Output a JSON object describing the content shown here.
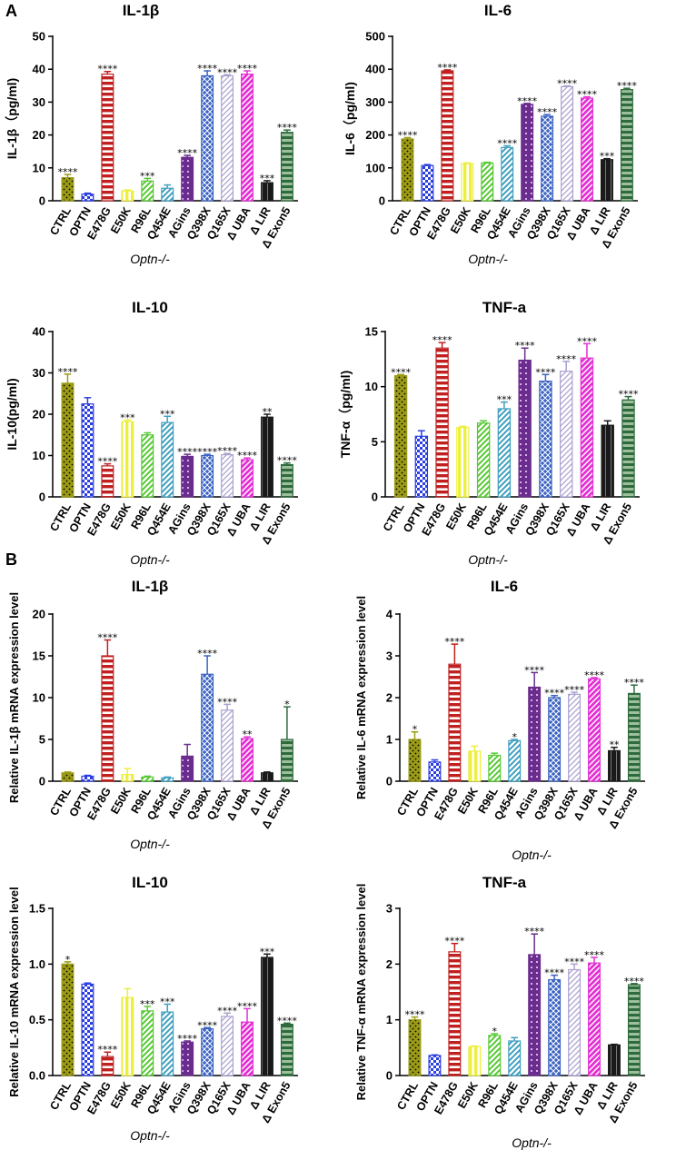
{
  "panel_labels": [
    "A",
    "B"
  ],
  "chart_data": [
    {
      "type": "bar",
      "title": "IL-1β",
      "ylabel": "IL-1β（pg/ml)",
      "xlabel": "Optn-/-",
      "ylim": [
        0,
        50
      ],
      "yticks": [
        "0",
        "10",
        "20",
        "30",
        "40",
        "50"
      ],
      "categories": [
        "CTRL",
        "OPTN",
        "E478G",
        "E50K",
        "R96L",
        "Q454E",
        "AGins",
        "Q398X",
        "Q165X",
        "Δ UBA",
        "Δ LIR",
        "Δ Exon5"
      ],
      "values": [
        7.0,
        2.0,
        38.5,
        3.0,
        6.0,
        3.8,
        13.2,
        38.0,
        38.0,
        38.5,
        5.5,
        20.8
      ],
      "errors": [
        1.0,
        0.3,
        0.8,
        0.3,
        0.8,
        1.0,
        0.6,
        1.5,
        0.3,
        1.0,
        0.6,
        0.7
      ],
      "significance": [
        "****",
        "",
        "****",
        "",
        "***",
        "",
        "****",
        "****",
        "****",
        "****",
        "***",
        "****"
      ]
    },
    {
      "type": "bar",
      "title": "IL-6",
      "ylabel": "IL-6（pg/ml)",
      "xlabel": "Optn-/-",
      "ylim": [
        0,
        500
      ],
      "yticks": [
        "0",
        "100",
        "200",
        "300",
        "400",
        "500"
      ],
      "categories": [
        "CTRL",
        "OPTN",
        "E478G",
        "E50K",
        "R96L",
        "Q454E",
        "AGins",
        "Q398X",
        "Q165X",
        "Δ UBA",
        "Δ LIR",
        "Δ Exon5"
      ],
      "values": [
        188,
        107,
        395,
        113,
        115,
        162,
        293,
        257,
        347,
        312,
        125,
        338
      ],
      "errors": [
        4,
        3,
        3,
        2,
        2,
        5,
        3,
        5,
        2,
        4,
        3,
        4
      ],
      "significance": [
        "****",
        "",
        "****",
        "",
        "",
        "****",
        "****",
        "****",
        "****",
        "****",
        "***",
        "****"
      ]
    },
    {
      "type": "bar",
      "title": "IL-10",
      "ylabel": "IL-10(pg/ml)",
      "xlabel": "Optn-/-",
      "ylim": [
        0,
        40
      ],
      "yticks": [
        "0",
        "10",
        "20",
        "30",
        "40"
      ],
      "categories": [
        "CTRL",
        "OPTN",
        "E478G",
        "E50K",
        "R96L",
        "Q454E",
        "AGins",
        "Q398X",
        "Q165X",
        "Δ UBA",
        "Δ LIR",
        "Δ Exon5"
      ],
      "values": [
        27.5,
        22.5,
        7.5,
        18.2,
        15.0,
        18.0,
        9.8,
        10.0,
        10.2,
        9.0,
        19.3,
        7.8
      ],
      "errors": [
        2.2,
        1.5,
        0.5,
        0.4,
        0.5,
        1.5,
        0.5,
        0.3,
        0.3,
        0.4,
        0.7,
        0.4
      ],
      "significance": [
        "****",
        "",
        "****",
        "***",
        "",
        "***",
        "****",
        "****",
        "****",
        "****",
        "**",
        "****"
      ]
    },
    {
      "type": "bar",
      "title": "TNF-a",
      "ylabel": "TNF-α（pg/ml)",
      "xlabel": "Optn-/-",
      "ylim": [
        0,
        15
      ],
      "yticks": [
        "0",
        "5",
        "10",
        "15"
      ],
      "categories": [
        "CTRL",
        "OPTN",
        "E478G",
        "E50K",
        "R96L",
        "Q454E",
        "AGins",
        "Q398X",
        "Q165X",
        "Δ UBA",
        "Δ LIR",
        "Δ Exon5"
      ],
      "values": [
        11.0,
        5.5,
        13.5,
        6.3,
        6.7,
        8.0,
        12.4,
        10.5,
        11.4,
        12.6,
        6.5,
        8.8
      ],
      "errors": [
        0.1,
        0.5,
        0.5,
        0.1,
        0.2,
        0.6,
        1.1,
        0.6,
        0.9,
        1.3,
        0.4,
        0.3
      ],
      "significance": [
        "****",
        "",
        "****",
        "",
        "",
        "***",
        "****",
        "****",
        "****",
        "****",
        "",
        "****"
      ]
    },
    {
      "type": "bar",
      "title": "IL-1β",
      "ylabel": "Relative IL-1β mRNA expression level",
      "xlabel": "Optn-/-",
      "ylim": [
        0,
        20
      ],
      "yticks": [
        "0",
        "5",
        "10",
        "15",
        "20"
      ],
      "categories": [
        "CTRL",
        "OPTN",
        "E478G",
        "E50K",
        "R96L",
        "Q454E",
        "AGins",
        "Q398X",
        "Q165X",
        "Δ UBA",
        "Δ LIR",
        "Δ Exon5"
      ],
      "values": [
        1.0,
        0.6,
        15.0,
        0.8,
        0.5,
        0.4,
        3.0,
        12.8,
        8.5,
        5.1,
        1.0,
        5.0
      ],
      "errors": [
        0.1,
        0.1,
        1.9,
        0.7,
        0.1,
        0.1,
        1.4,
        2.2,
        0.7,
        0.2,
        0.1,
        3.9
      ],
      "significance": [
        "",
        "",
        "****",
        "",
        "",
        "",
        "",
        "****",
        "****",
        "**",
        "",
        "*"
      ]
    },
    {
      "type": "bar",
      "title": "IL-6",
      "ylabel": "Relative IL-6 mRNA expression level",
      "xlabel": "Optn-/-",
      "ylim": [
        0,
        4
      ],
      "yticks": [
        "0",
        "1",
        "2",
        "3",
        "4"
      ],
      "categories": [
        "CTRL",
        "OPTN",
        "E478G",
        "E50K",
        "R96L",
        "Q454E",
        "AGins",
        "Q398X",
        "Q165X",
        "Δ UBA",
        "Δ LIR",
        "Δ Exon5"
      ],
      "values": [
        1.0,
        0.46,
        2.8,
        0.72,
        0.62,
        0.97,
        2.25,
        2.0,
        2.08,
        2.45,
        0.73,
        2.1
      ],
      "errors": [
        0.18,
        0.05,
        0.48,
        0.12,
        0.05,
        0.03,
        0.35,
        0.05,
        0.05,
        0.03,
        0.08,
        0.2
      ],
      "significance": [
        "*",
        "",
        "****",
        "",
        "",
        "*",
        "****",
        "****",
        "****",
        "****",
        "**",
        "****"
      ]
    },
    {
      "type": "bar",
      "title": "IL-10",
      "ylabel": "Relative IL-10 mRNA expression level",
      "xlabel": "Optn-/-",
      "ylim": [
        0,
        1.5
      ],
      "yticks": [
        "0.0",
        "0.5",
        "1.0",
        "1.5"
      ],
      "categories": [
        "CTRL",
        "OPTN",
        "E478G",
        "E50K",
        "R96L",
        "Q454E",
        "AGins",
        "Q398X",
        "Q165X",
        "Δ UBA",
        "Δ LIR",
        "Δ Exon5"
      ],
      "values": [
        1.0,
        0.82,
        0.17,
        0.7,
        0.58,
        0.57,
        0.3,
        0.42,
        0.53,
        0.48,
        1.06,
        0.46
      ],
      "errors": [
        0.02,
        0.01,
        0.04,
        0.08,
        0.04,
        0.07,
        0.01,
        0.01,
        0.03,
        0.12,
        0.03,
        0.01
      ],
      "significance": [
        "*",
        "",
        "****",
        "",
        "***",
        "***",
        "****",
        "****",
        "****",
        "****",
        "***",
        "****"
      ]
    },
    {
      "type": "bar",
      "title": "TNF-a",
      "ylabel": "Relative TNF-α mRNA expression level",
      "xlabel": "Optn-/-",
      "ylim": [
        0,
        3
      ],
      "yticks": [
        "0",
        "1",
        "2",
        "3"
      ],
      "categories": [
        "CTRL",
        "OPTN",
        "E478G",
        "E50K",
        "R96L",
        "Q454E",
        "AGins",
        "Q398X",
        "Q165X",
        "Δ UBA",
        "Δ LIR",
        "Δ Exon5"
      ],
      "values": [
        1.0,
        0.36,
        2.22,
        0.52,
        0.72,
        0.62,
        2.17,
        1.72,
        1.9,
        2.02,
        0.55,
        1.63
      ],
      "errors": [
        0.05,
        0.01,
        0.15,
        0.01,
        0.03,
        0.06,
        0.37,
        0.08,
        0.1,
        0.1,
        0.01,
        0.02
      ],
      "significance": [
        "****",
        "",
        "****",
        "",
        "*",
        "",
        "****",
        "****",
        "****",
        "****",
        "",
        "****"
      ]
    }
  ],
  "colors": {
    "bars": [
      "#9b9b17",
      "#2d3ee0",
      "#c0201f",
      "#ecef3e",
      "#56c833",
      "#3f9fbe",
      "#6a2d8e",
      "#3a62c2",
      "#ab9fcf",
      "#e330d2",
      "#1a1a1a",
      "#2e6b3c"
    ],
    "lights": [
      "#ffffff",
      "#ffffff",
      "#ffffff",
      "#ffffff",
      "#ffffff",
      "#ffffff",
      "#ffffff",
      "#ffffff",
      "#ffffff",
      "#ffffff",
      "#ffffff",
      "#9dbf9d"
    ],
    "patterns": [
      "dots",
      "checker",
      "hstripes",
      "vstripes",
      "diag",
      "diag",
      "grid",
      "cross",
      "diagthin",
      "diagthick",
      "vthin",
      "hthick"
    ]
  }
}
